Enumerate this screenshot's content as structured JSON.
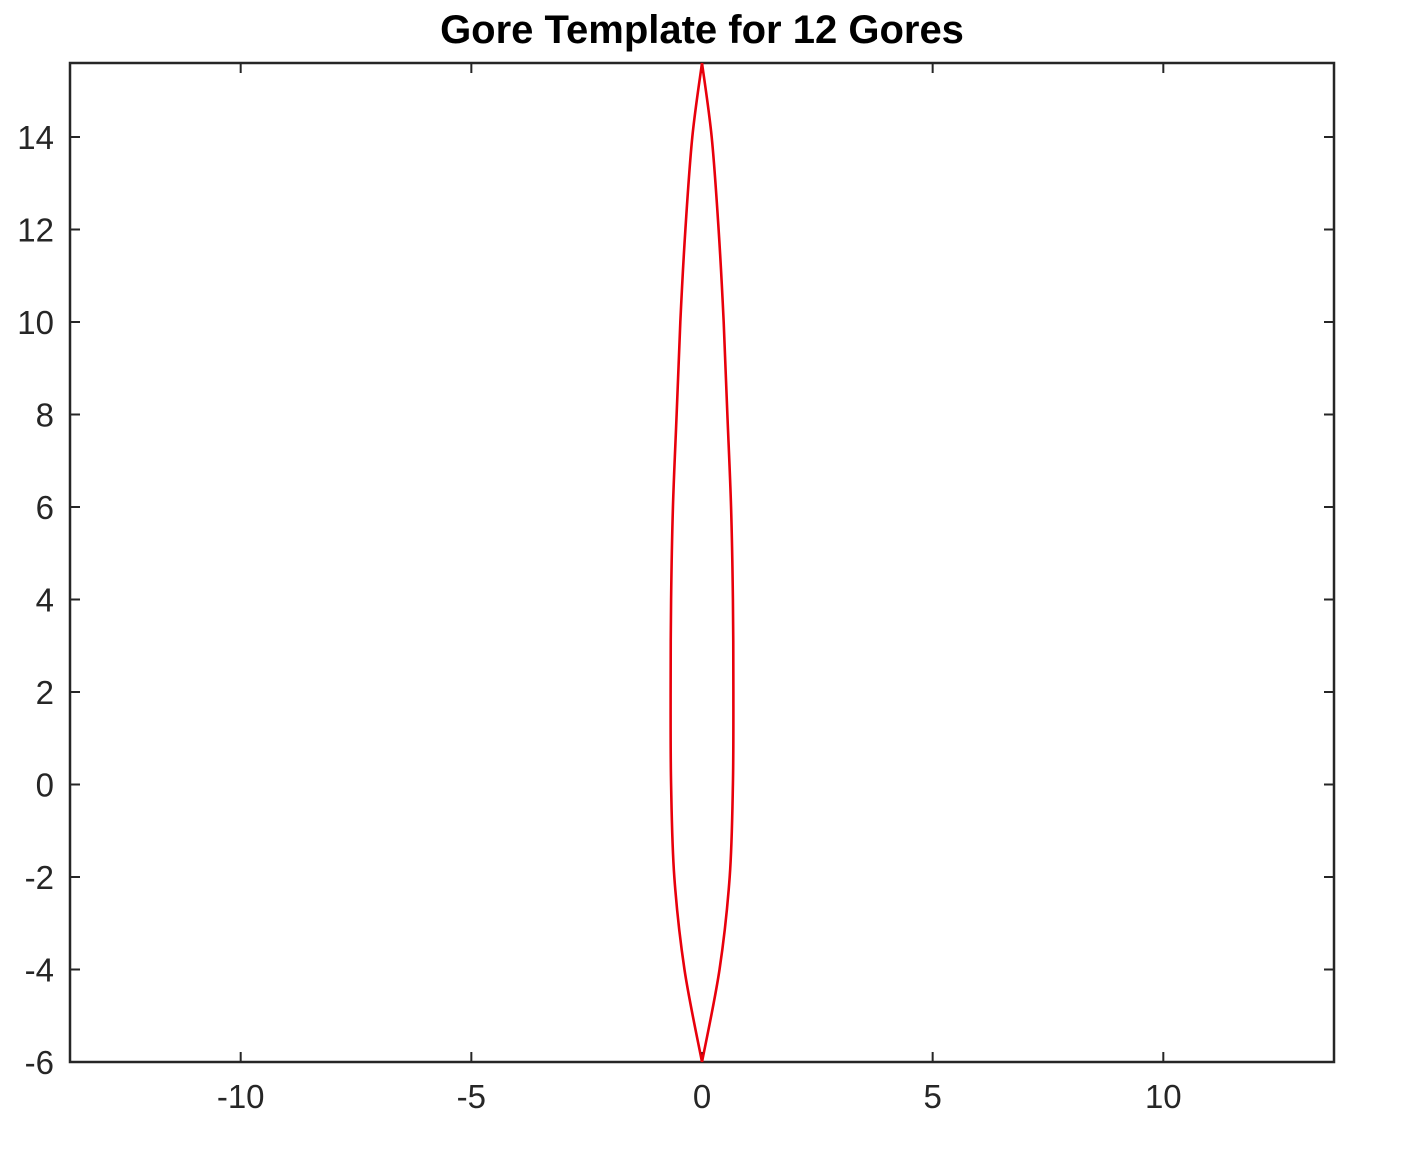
{
  "chart_data": {
    "type": "line",
    "title": "Gore Template for 12 Gores",
    "xlabel": "",
    "ylabel": "",
    "xlim": [
      -13.7,
      13.7
    ],
    "ylim": [
      -6,
      15.6
    ],
    "xticks": [
      -10,
      -5,
      0,
      5,
      10
    ],
    "yticks": [
      -6,
      -4,
      -2,
      0,
      2,
      4,
      6,
      8,
      10,
      12,
      14
    ],
    "xtick_labels": [
      "-10",
      "-5",
      "0",
      "5",
      "10"
    ],
    "ytick_labels": [
      "-6",
      "-4",
      "-2",
      "0",
      "2",
      "4",
      "6",
      "8",
      "10",
      "12",
      "14"
    ],
    "grid": false,
    "series": [
      {
        "color": "#e8000b",
        "y_bottom": -6,
        "y_top": 15.6,
        "max_half_width": 0.68,
        "description_points": [
          {
            "y": -6,
            "x": 0
          },
          {
            "y": -4,
            "x": 0.38
          },
          {
            "y": -2,
            "x": 0.6
          },
          {
            "y": 0,
            "x": 0.67
          },
          {
            "y": 2,
            "x": 0.68
          },
          {
            "y": 4,
            "x": 0.67
          },
          {
            "y": 6,
            "x": 0.63
          },
          {
            "y": 8,
            "x": 0.55
          },
          {
            "y": 10,
            "x": 0.47
          },
          {
            "y": 12,
            "x": 0.36
          },
          {
            "y": 14,
            "x": 0.21
          },
          {
            "y": 15.6,
            "x": 0
          }
        ]
      }
    ]
  }
}
